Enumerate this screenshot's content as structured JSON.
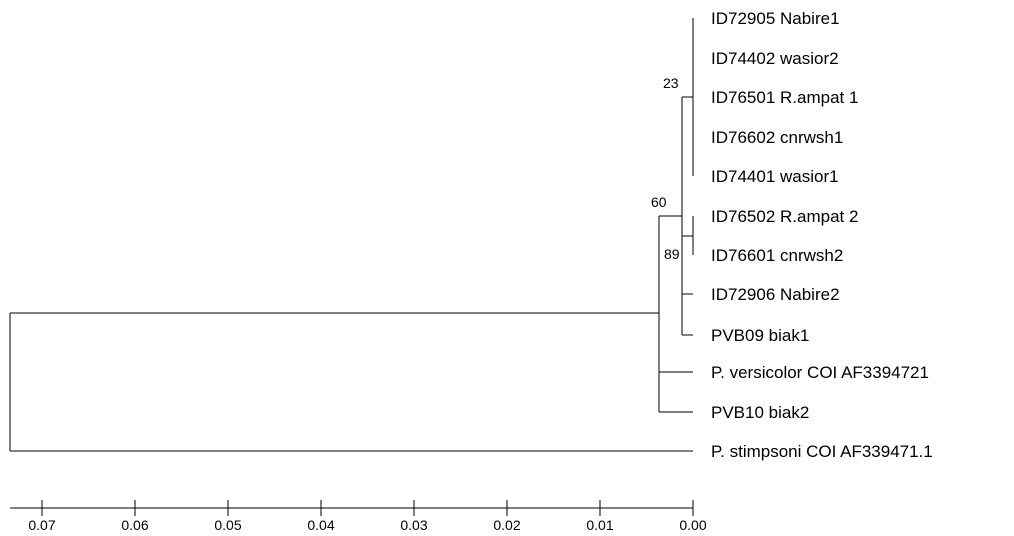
{
  "tree": {
    "leaves": [
      "ID72905 Nabire1",
      "ID74402 wasior2",
      "ID76501 R.ampat 1",
      "ID76602 cnrwsh1",
      "ID74401 wasior1",
      "ID76502 R.ampat 2",
      "ID76601 cnrwsh2",
      "ID72906 Nabire2",
      "PVB09 biak1",
      "P. versicolor COI AF3394721",
      "PVB10 biak2",
      "P. stimpsoni COI AF339471.1"
    ],
    "support_values": [
      "23",
      "60",
      "89"
    ]
  },
  "scale_axis": {
    "ticks": [
      0.07,
      0.06,
      0.05,
      0.04,
      0.03,
      0.02,
      0.01,
      0.0
    ],
    "tick_labels": [
      "0.07",
      "0.06",
      "0.05",
      "0.04",
      "0.03",
      "0.02",
      "0.01",
      "0.00"
    ]
  }
}
